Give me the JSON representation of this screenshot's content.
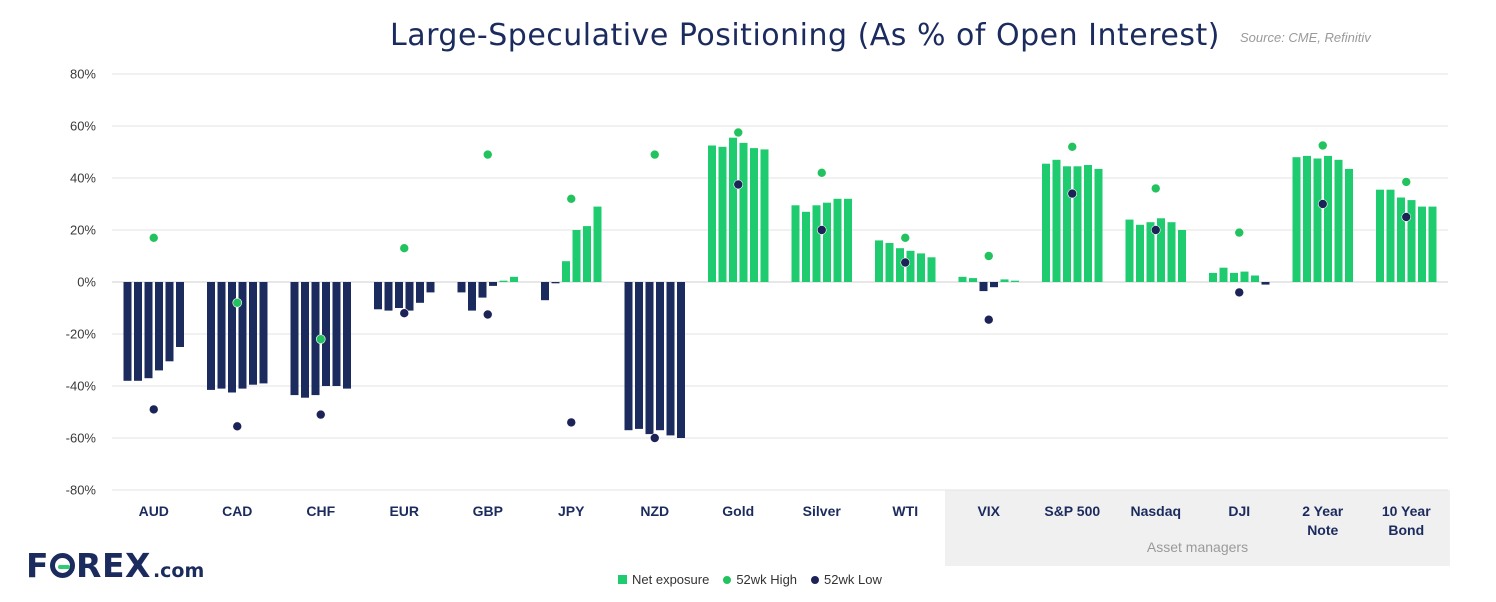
{
  "chart_data": {
    "type": "bar",
    "title": "Large-Speculative Positioning (As % of Open Interest)",
    "source": "Source: CME, Refinitiv",
    "ylim": [
      -80,
      80
    ],
    "y_ticks": [
      80,
      60,
      40,
      20,
      0,
      -20,
      -40,
      -60,
      -80
    ],
    "y_tick_labels": [
      "80%",
      "60%",
      "40%",
      "20%",
      "0%",
      "-20%",
      "-40%",
      "-60%",
      "-80%"
    ],
    "group_label": "Asset managers",
    "colors": {
      "positive": "#1ecb6e",
      "negative": "#1c2b5e",
      "high": "#22c35e",
      "low": "#1c2356",
      "grid": "#e3e3e3",
      "shade": "#f0f0f0"
    },
    "legend": [
      {
        "label": "Net exposure",
        "marker": "square",
        "color": "#1ecb6e"
      },
      {
        "label": "52wk High",
        "marker": "dot",
        "color": "#22c35e"
      },
      {
        "label": "52wk Low",
        "marker": "dot",
        "color": "#1c2356"
      }
    ],
    "categories": [
      {
        "label": [
          "AUD"
        ],
        "values": [
          -38,
          -38,
          -37,
          -34,
          -30.5,
          -25
        ],
        "high": 17,
        "low": -49,
        "group": ""
      },
      {
        "label": [
          "CAD"
        ],
        "values": [
          -41.5,
          -41,
          -42.5,
          -41,
          -39.5,
          -39
        ],
        "high": -8,
        "low": -55.5,
        "group": ""
      },
      {
        "label": [
          "CHF"
        ],
        "values": [
          -43.5,
          -44.5,
          -43.5,
          -40,
          -40,
          -41
        ],
        "high": -22,
        "low": -51,
        "group": ""
      },
      {
        "label": [
          "EUR"
        ],
        "values": [
          -10.5,
          -11,
          -10,
          -11,
          -8,
          -4
        ],
        "high": 13,
        "low": -12,
        "group": ""
      },
      {
        "label": [
          "GBP"
        ],
        "values": [
          -4,
          -11,
          -6,
          -1.5,
          0.5,
          2
        ],
        "high": 49,
        "low": -12.5,
        "group": ""
      },
      {
        "label": [
          "JPY"
        ],
        "values": [
          -7,
          -0.5,
          8,
          20,
          21.5,
          29
        ],
        "high": 32,
        "low": -54,
        "group": ""
      },
      {
        "label": [
          "NZD"
        ],
        "values": [
          -57,
          -56.5,
          -58.5,
          -57,
          -59,
          -60
        ],
        "high": 49,
        "low": -60,
        "group": ""
      },
      {
        "label": [
          "Gold"
        ],
        "values": [
          52.5,
          52,
          55.5,
          53.5,
          51.5,
          51
        ],
        "high": 57.5,
        "low": 37.5,
        "group": ""
      },
      {
        "label": [
          "Silver"
        ],
        "values": [
          29.5,
          27,
          29.5,
          30.5,
          32,
          32
        ],
        "high": 42,
        "low": 20,
        "group": ""
      },
      {
        "label": [
          "WTI"
        ],
        "values": [
          16,
          15,
          13,
          12,
          11,
          9.5
        ],
        "high": 17,
        "low": 7.5,
        "group": ""
      },
      {
        "label": [
          "VIX"
        ],
        "values": [
          2,
          1.5,
          -3.5,
          -2,
          1,
          0.5
        ],
        "high": 10,
        "low": -14.5,
        "group": "Asset managers"
      },
      {
        "label": [
          "S&P 500"
        ],
        "values": [
          45.5,
          47,
          44.5,
          44.5,
          45,
          43.5
        ],
        "high": 52,
        "low": 34,
        "group": "Asset managers"
      },
      {
        "label": [
          "Nasdaq"
        ],
        "values": [
          24,
          22,
          23,
          24.5,
          23,
          20
        ],
        "high": 36,
        "low": 20,
        "group": "Asset managers"
      },
      {
        "label": [
          "DJI"
        ],
        "values": [
          3.5,
          5.5,
          3.5,
          4,
          2.5,
          -1
        ],
        "high": 19,
        "low": -4,
        "group": "Asset managers"
      },
      {
        "label": [
          "2 Year",
          "Note"
        ],
        "values": [
          48,
          48.5,
          47.5,
          48.5,
          47,
          43.5
        ],
        "high": 52.5,
        "low": 30,
        "group": "Asset managers"
      },
      {
        "label": [
          "10 Year",
          "Bond"
        ],
        "values": [
          35.5,
          35.5,
          32.5,
          31.5,
          29,
          29
        ],
        "high": 38.5,
        "low": 25,
        "group": "Asset managers"
      }
    ]
  },
  "logo": {
    "text_left": "F",
    "text_right": "REX",
    "suffix": ".com"
  }
}
